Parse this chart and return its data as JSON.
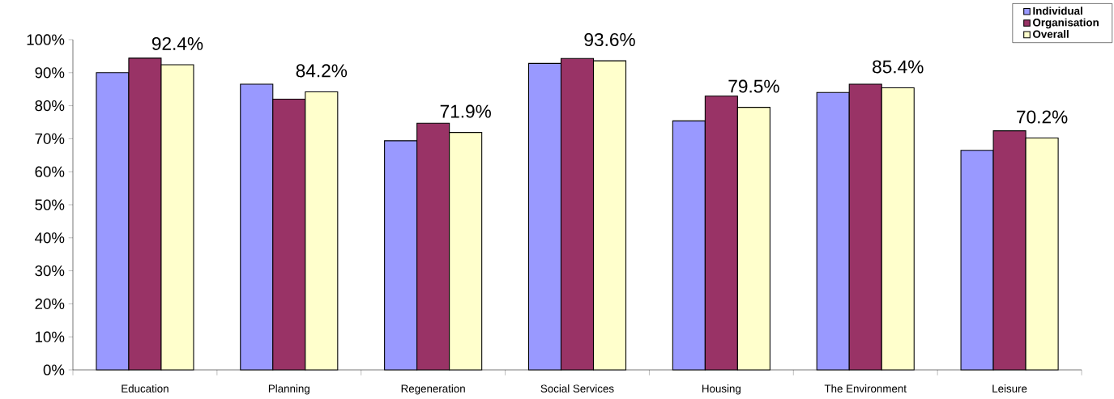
{
  "chart_data": {
    "type": "bar",
    "categories": [
      "Education",
      "Planning",
      "Regeneration",
      "Social Services",
      "Housing",
      "The Environment",
      "Leisure"
    ],
    "series": [
      {
        "name": "Individual",
        "color": "#9999ff",
        "values": [
          90,
          86.5,
          69.4,
          92.8,
          75.4,
          84,
          66.5
        ]
      },
      {
        "name": "Organisation",
        "color": "#993366",
        "values": [
          94.4,
          82,
          74.7,
          94.3,
          82.9,
          86.5,
          72.4
        ]
      },
      {
        "name": "Overall",
        "color": "#ffffcc",
        "values": [
          92.4,
          84.2,
          71.9,
          93.6,
          79.5,
          85.4,
          70.2
        ],
        "value_labels": [
          "92.4%",
          "84.2%",
          "71.9%",
          "93.6%",
          "79.5%",
          "85.4%",
          "70.2%"
        ]
      }
    ],
    "ylim": [
      0,
      100
    ],
    "yticks": [
      {
        "value": 0,
        "label": "0%"
      },
      {
        "value": 10,
        "label": "10%"
      },
      {
        "value": 20,
        "label": "20%"
      },
      {
        "value": 30,
        "label": "30%"
      },
      {
        "value": 40,
        "label": "40%"
      },
      {
        "value": 50,
        "label": "50%"
      },
      {
        "value": 60,
        "label": "60%"
      },
      {
        "value": 70,
        "label": "70%"
      },
      {
        "value": 80,
        "label": "80%"
      },
      {
        "value": 90,
        "label": "90%"
      },
      {
        "value": 100,
        "label": "100%"
      }
    ],
    "legend": "top right"
  }
}
